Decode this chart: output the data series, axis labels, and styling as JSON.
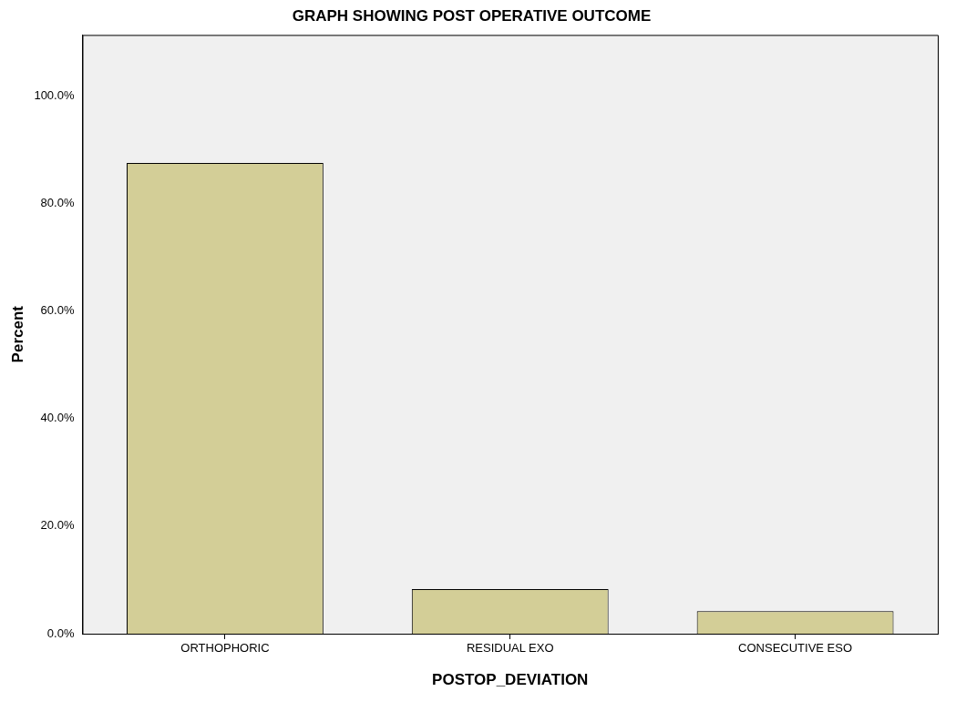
{
  "chart_data": {
    "type": "bar",
    "title": "GRAPH SHOWING POST OPERATIVE OUTCOME",
    "xlabel": "POSTOP_DEVIATION",
    "ylabel": "Percent",
    "categories": [
      "ORTHOPHORIC",
      "RESIDUAL EXO",
      "CONSECUTIVE ESO"
    ],
    "values": [
      87.5,
      8.3,
      4.2
    ],
    "color": "#d3ce97",
    "ylim": [
      0,
      111.3
    ],
    "yticks": [
      {
        "value": 0,
        "label": "0.0%"
      },
      {
        "value": 20,
        "label": "20.0%"
      },
      {
        "value": 40,
        "label": "40.0%"
      },
      {
        "value": 60,
        "label": "60.0%"
      },
      {
        "value": 80,
        "label": "80.0%"
      },
      {
        "value": 100,
        "label": "100.0%"
      }
    ],
    "grid": false,
    "legend": false
  }
}
